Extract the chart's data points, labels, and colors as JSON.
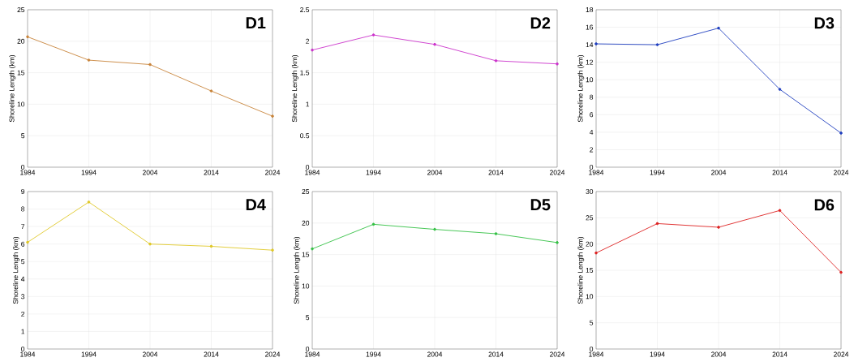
{
  "chart_data": [
    {
      "type": "line",
      "title": "D1",
      "ylabel": "Shoreline Length (km)",
      "x": [
        1984,
        1994,
        2004,
        2014,
        2024
      ],
      "xlim": [
        1984,
        2024
      ],
      "xticks": [
        1984,
        1994,
        2004,
        2014,
        2024
      ],
      "ylim": [
        0,
        25
      ],
      "yticks": [
        0,
        5,
        10,
        15,
        20,
        25
      ],
      "grid": true,
      "marker": "circle",
      "line_style": "solid",
      "series": [
        {
          "color": "#c8843a",
          "values": [
            20.7,
            17.0,
            16.3,
            12.1,
            8.1
          ]
        }
      ]
    },
    {
      "type": "line",
      "title": "D2",
      "ylabel": "Shoreline Length (km)",
      "x": [
        1984,
        1994,
        2004,
        2014,
        2024
      ],
      "xlim": [
        1984,
        2024
      ],
      "xticks": [
        1984,
        1994,
        2004,
        2014,
        2024
      ],
      "ylim": [
        0,
        2.5
      ],
      "yticks": [
        0,
        0.5,
        1,
        1.5,
        2,
        2.5
      ],
      "grid": true,
      "marker": "circle",
      "line_style": "solid",
      "series": [
        {
          "color": "#cc33cc",
          "values": [
            1.86,
            2.1,
            1.95,
            1.69,
            1.64
          ]
        }
      ]
    },
    {
      "type": "line",
      "title": "D3",
      "ylabel": "Shoreline Length (km)",
      "x": [
        1984,
        1994,
        2004,
        2014,
        2024
      ],
      "xlim": [
        1984,
        2024
      ],
      "xticks": [
        1984,
        1994,
        2004,
        2014,
        2024
      ],
      "ylim": [
        0,
        18
      ],
      "yticks": [
        0,
        2,
        4,
        6,
        8,
        10,
        12,
        14,
        16,
        18
      ],
      "grid": true,
      "marker": "circle",
      "line_style": "solid",
      "series": [
        {
          "color": "#1f3fbf",
          "values": [
            14.1,
            14.0,
            15.9,
            8.9,
            3.9
          ]
        }
      ]
    },
    {
      "type": "line",
      "title": "D4",
      "ylabel": "Shoreline Length (km)",
      "x": [
        1984,
        1994,
        2004,
        2014,
        2024
      ],
      "xlim": [
        1984,
        2024
      ],
      "xticks": [
        1984,
        1994,
        2004,
        2014,
        2024
      ],
      "ylim": [
        0,
        9
      ],
      "yticks": [
        0,
        1,
        2,
        3,
        4,
        5,
        6,
        7,
        8,
        9
      ],
      "grid": true,
      "marker": "circle",
      "line_style": "solid",
      "series": [
        {
          "color": "#e0c828",
          "values": [
            6.1,
            8.4,
            6.0,
            5.87,
            5.65
          ]
        }
      ]
    },
    {
      "type": "line",
      "title": "D5",
      "ylabel": "Shoreline Length (km)",
      "x": [
        1984,
        1994,
        2004,
        2014,
        2024
      ],
      "xlim": [
        1984,
        2024
      ],
      "xticks": [
        1984,
        1994,
        2004,
        2014,
        2024
      ],
      "ylim": [
        0,
        25
      ],
      "yticks": [
        0,
        5,
        10,
        15,
        20,
        25
      ],
      "grid": true,
      "marker": "circle",
      "line_style": "solid",
      "series": [
        {
          "color": "#33c044",
          "values": [
            15.9,
            19.8,
            19.0,
            18.3,
            16.9
          ]
        }
      ]
    },
    {
      "type": "line",
      "title": "D6",
      "ylabel": "Shoreline Length (km)",
      "x": [
        1984,
        1994,
        2004,
        2014,
        2024
      ],
      "xlim": [
        1984,
        2024
      ],
      "xticks": [
        1984,
        1994,
        2004,
        2014,
        2024
      ],
      "ylim": [
        0,
        30
      ],
      "yticks": [
        0,
        5,
        10,
        15,
        20,
        25,
        30
      ],
      "grid": true,
      "marker": "circle",
      "line_style": "solid",
      "series": [
        {
          "color": "#dd2222",
          "values": [
            18.3,
            23.9,
            23.2,
            26.4,
            14.6
          ]
        }
      ]
    }
  ]
}
